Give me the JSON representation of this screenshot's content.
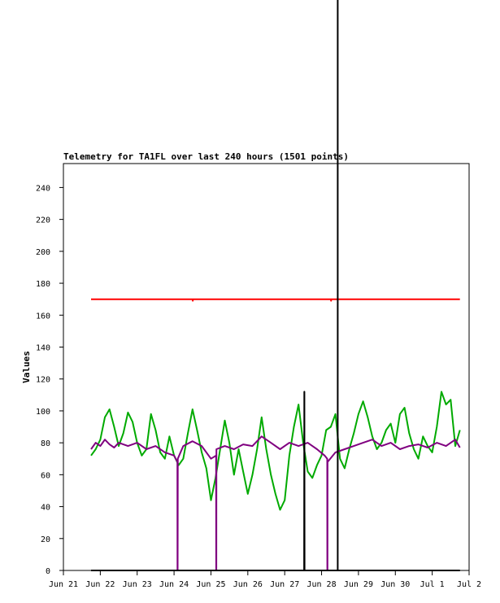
{
  "chart_data": {
    "type": "line",
    "title": "Telemetry for TA1FL over last 240 hours (1501 points)",
    "ylabel": "Values",
    "xlabel": "",
    "x_range": [
      "2023-06-21",
      "2023-07-02"
    ],
    "ylim": [
      0,
      255
    ],
    "y_ticks": [
      0,
      20,
      40,
      60,
      80,
      100,
      120,
      140,
      160,
      180,
      200,
      220,
      240
    ],
    "x_ticks": [
      {
        "date": "2023-06-21",
        "label": "Jun 21"
      },
      {
        "date": "2023-06-22",
        "label": "Jun 22"
      },
      {
        "date": "2023-06-23",
        "label": "Jun 23"
      },
      {
        "date": "2023-06-24",
        "label": "Jun 24"
      },
      {
        "date": "2023-06-25",
        "label": "Jun 25"
      },
      {
        "date": "2023-06-26",
        "label": "Jun 26"
      },
      {
        "date": "2023-06-27",
        "label": "Jun 27"
      },
      {
        "date": "2023-06-28",
        "label": "Jun 28"
      },
      {
        "date": "2023-06-29",
        "label": "Jun 29"
      },
      {
        "date": "2023-06-30",
        "label": "Jun 30"
      },
      {
        "date": "2023-07-01",
        "label": "Jul 1"
      },
      {
        "date": "2023-07-02",
        "label": "Jul 2"
      }
    ],
    "grid": false,
    "legend": "none",
    "series": [
      {
        "color": "#ff0000",
        "points": [
          [
            "2023-06-21 18:00",
            170
          ],
          [
            "2023-06-24 12:00",
            170
          ],
          [
            "2023-06-24 12:10",
            169
          ],
          [
            "2023-06-24 12:20",
            170
          ],
          [
            "2023-06-28 06:00",
            170
          ],
          [
            "2023-06-28 06:10",
            169
          ],
          [
            "2023-06-28 06:20",
            170
          ],
          [
            "2023-07-01 18:00",
            170
          ]
        ]
      },
      {
        "color": "#00aa00",
        "points": [
          [
            "2023-06-21 18:00",
            72
          ],
          [
            "2023-06-21 21:00",
            76
          ],
          [
            "2023-06-22 00:00",
            82
          ],
          [
            "2023-06-22 03:00",
            96
          ],
          [
            "2023-06-22 06:00",
            101
          ],
          [
            "2023-06-22 09:00",
            90
          ],
          [
            "2023-06-22 12:00",
            78
          ],
          [
            "2023-06-22 15:00",
            86
          ],
          [
            "2023-06-22 18:00",
            99
          ],
          [
            "2023-06-22 21:00",
            93
          ],
          [
            "2023-06-23 00:00",
            80
          ],
          [
            "2023-06-23 03:00",
            72
          ],
          [
            "2023-06-23 06:00",
            76
          ],
          [
            "2023-06-23 09:00",
            98
          ],
          [
            "2023-06-23 12:00",
            88
          ],
          [
            "2023-06-23 15:00",
            74
          ],
          [
            "2023-06-23 18:00",
            70
          ],
          [
            "2023-06-23 21:00",
            84
          ],
          [
            "2023-06-24 00:00",
            72
          ],
          [
            "2023-06-24 03:00",
            66
          ],
          [
            "2023-06-24 06:00",
            70
          ],
          [
            "2023-06-24 09:00",
            86
          ],
          [
            "2023-06-24 12:00",
            101
          ],
          [
            "2023-06-24 15:00",
            88
          ],
          [
            "2023-06-24 18:00",
            74
          ],
          [
            "2023-06-24 21:00",
            64
          ],
          [
            "2023-06-25 00:00",
            44
          ],
          [
            "2023-06-25 03:00",
            58
          ],
          [
            "2023-06-25 06:00",
            76
          ],
          [
            "2023-06-25 09:00",
            94
          ],
          [
            "2023-06-25 12:00",
            80
          ],
          [
            "2023-06-25 15:00",
            60
          ],
          [
            "2023-06-25 18:00",
            76
          ],
          [
            "2023-06-25 21:00",
            62
          ],
          [
            "2023-06-26 00:00",
            48
          ],
          [
            "2023-06-26 03:00",
            60
          ],
          [
            "2023-06-26 06:00",
            76
          ],
          [
            "2023-06-26 09:00",
            96
          ],
          [
            "2023-06-26 12:00",
            76
          ],
          [
            "2023-06-26 15:00",
            60
          ],
          [
            "2023-06-26 18:00",
            48
          ],
          [
            "2023-06-26 21:00",
            38
          ],
          [
            "2023-06-27 00:00",
            44
          ],
          [
            "2023-06-27 03:00",
            72
          ],
          [
            "2023-06-27 06:00",
            90
          ],
          [
            "2023-06-27 09:00",
            104
          ],
          [
            "2023-06-27 12:00",
            80
          ],
          [
            "2023-06-27 15:00",
            62
          ],
          [
            "2023-06-27 18:00",
            58
          ],
          [
            "2023-06-27 21:00",
            66
          ],
          [
            "2023-06-28 00:00",
            72
          ],
          [
            "2023-06-28 03:00",
            88
          ],
          [
            "2023-06-28 06:00",
            90
          ],
          [
            "2023-06-28 09:00",
            98
          ],
          [
            "2023-06-28 12:00",
            70
          ],
          [
            "2023-06-28 15:00",
            64
          ],
          [
            "2023-06-28 18:00",
            76
          ],
          [
            "2023-06-28 21:00",
            86
          ],
          [
            "2023-06-29 00:00",
            98
          ],
          [
            "2023-06-29 03:00",
            106
          ],
          [
            "2023-06-29 06:00",
            96
          ],
          [
            "2023-06-29 09:00",
            84
          ],
          [
            "2023-06-29 12:00",
            76
          ],
          [
            "2023-06-29 15:00",
            80
          ],
          [
            "2023-06-29 18:00",
            88
          ],
          [
            "2023-06-29 21:00",
            92
          ],
          [
            "2023-06-30 00:00",
            80
          ],
          [
            "2023-06-30 03:00",
            98
          ],
          [
            "2023-06-30 06:00",
            102
          ],
          [
            "2023-06-30 09:00",
            86
          ],
          [
            "2023-06-30 12:00",
            76
          ],
          [
            "2023-06-30 15:00",
            70
          ],
          [
            "2023-06-30 18:00",
            84
          ],
          [
            "2023-06-30 21:00",
            78
          ],
          [
            "2023-07-01 00:00",
            74
          ],
          [
            "2023-07-01 03:00",
            90
          ],
          [
            "2023-07-01 06:00",
            112
          ],
          [
            "2023-07-01 09:00",
            104
          ],
          [
            "2023-07-01 12:00",
            107
          ],
          [
            "2023-07-01 15:00",
            78
          ],
          [
            "2023-07-01 18:00",
            88
          ]
        ]
      },
      {
        "color": "#800080",
        "points": [
          [
            "2023-06-21 18:00",
            76
          ],
          [
            "2023-06-21 21:00",
            80
          ],
          [
            "2023-06-22 00:00",
            78
          ],
          [
            "2023-06-22 03:00",
            82
          ],
          [
            "2023-06-22 06:00",
            79
          ],
          [
            "2023-06-22 09:00",
            77
          ],
          [
            "2023-06-22 12:00",
            80
          ],
          [
            "2023-06-22 18:00",
            78
          ],
          [
            "2023-06-23 00:00",
            80
          ],
          [
            "2023-06-23 06:00",
            76
          ],
          [
            "2023-06-23 12:00",
            78
          ],
          [
            "2023-06-23 18:00",
            74
          ],
          [
            "2023-06-24 00:00",
            72
          ],
          [
            "2023-06-24 02:10",
            68
          ],
          [
            "2023-06-24 02:15",
            0
          ],
          [
            "2023-06-24 02:20",
            0
          ],
          [
            "2023-06-24 02:25",
            70
          ],
          [
            "2023-06-24 06:00",
            78
          ],
          [
            "2023-06-24 12:00",
            81
          ],
          [
            "2023-06-24 18:00",
            78
          ],
          [
            "2023-06-25 00:00",
            70
          ],
          [
            "2023-06-25 03:20",
            72
          ],
          [
            "2023-06-25 03:25",
            0
          ],
          [
            "2023-06-25 03:30",
            0
          ],
          [
            "2023-06-25 03:35",
            76
          ],
          [
            "2023-06-25 09:00",
            78
          ],
          [
            "2023-06-25 15:00",
            76
          ],
          [
            "2023-06-25 21:00",
            79
          ],
          [
            "2023-06-26 03:00",
            78
          ],
          [
            "2023-06-26 09:00",
            84
          ],
          [
            "2023-06-26 15:00",
            80
          ],
          [
            "2023-06-26 21:00",
            76
          ],
          [
            "2023-06-27 03:00",
            80
          ],
          [
            "2023-06-27 09:00",
            78
          ],
          [
            "2023-06-27 15:00",
            80
          ],
          [
            "2023-06-27 21:00",
            76
          ],
          [
            "2023-06-28 02:00",
            72
          ],
          [
            "2023-06-28 03:40",
            70
          ],
          [
            "2023-06-28 03:45",
            0
          ],
          [
            "2023-06-28 03:50",
            0
          ],
          [
            "2023-06-28 03:55",
            68
          ],
          [
            "2023-06-28 09:00",
            74
          ],
          [
            "2023-06-28 15:00",
            76
          ],
          [
            "2023-06-28 21:00",
            78
          ],
          [
            "2023-06-29 03:00",
            80
          ],
          [
            "2023-06-29 09:00",
            82
          ],
          [
            "2023-06-29 15:00",
            78
          ],
          [
            "2023-06-29 21:00",
            80
          ],
          [
            "2023-06-30 03:00",
            76
          ],
          [
            "2023-06-30 09:00",
            78
          ],
          [
            "2023-06-30 15:00",
            79
          ],
          [
            "2023-06-30 21:00",
            77
          ],
          [
            "2023-07-01 03:00",
            80
          ],
          [
            "2023-07-01 09:00",
            78
          ],
          [
            "2023-07-01 15:00",
            82
          ],
          [
            "2023-07-01 18:00",
            77
          ]
        ]
      },
      {
        "color": "#000000",
        "points": [
          [
            "2023-06-21 18:00",
            0
          ],
          [
            "2023-06-27 12:40",
            0
          ],
          [
            "2023-06-27 12:45",
            112
          ],
          [
            "2023-06-27 12:50",
            112
          ],
          [
            "2023-06-27 12:55",
            0
          ],
          [
            "2023-07-01 18:00",
            0
          ]
        ]
      }
    ],
    "vertical_lines": [
      {
        "date": "2023-06-28 10:30",
        "color": "#000000"
      }
    ]
  }
}
